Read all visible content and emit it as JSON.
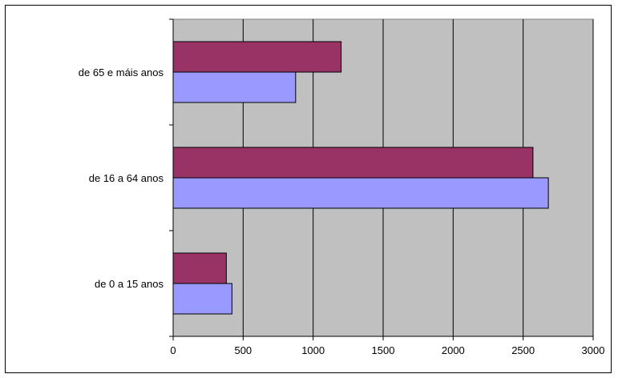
{
  "chart_data": {
    "type": "bar",
    "orientation": "horizontal",
    "categories": [
      "de 65 e máis anos",
      "de 16 a 64 anos",
      "de 0 a 15 anos"
    ],
    "series": [
      {
        "values": [
          1200,
          2570,
          380
        ],
        "color": "#993366"
      },
      {
        "values": [
          875,
          2680,
          420
        ],
        "color": "#9999ff"
      }
    ],
    "xlim": [
      0,
      3000
    ],
    "xticks": [
      0,
      500,
      1000,
      1500,
      2000,
      2500,
      3000
    ],
    "title": "",
    "xlabel": "",
    "ylabel": "",
    "grid": true,
    "plot_background": "#c0c0c0",
    "legend": "none"
  }
}
